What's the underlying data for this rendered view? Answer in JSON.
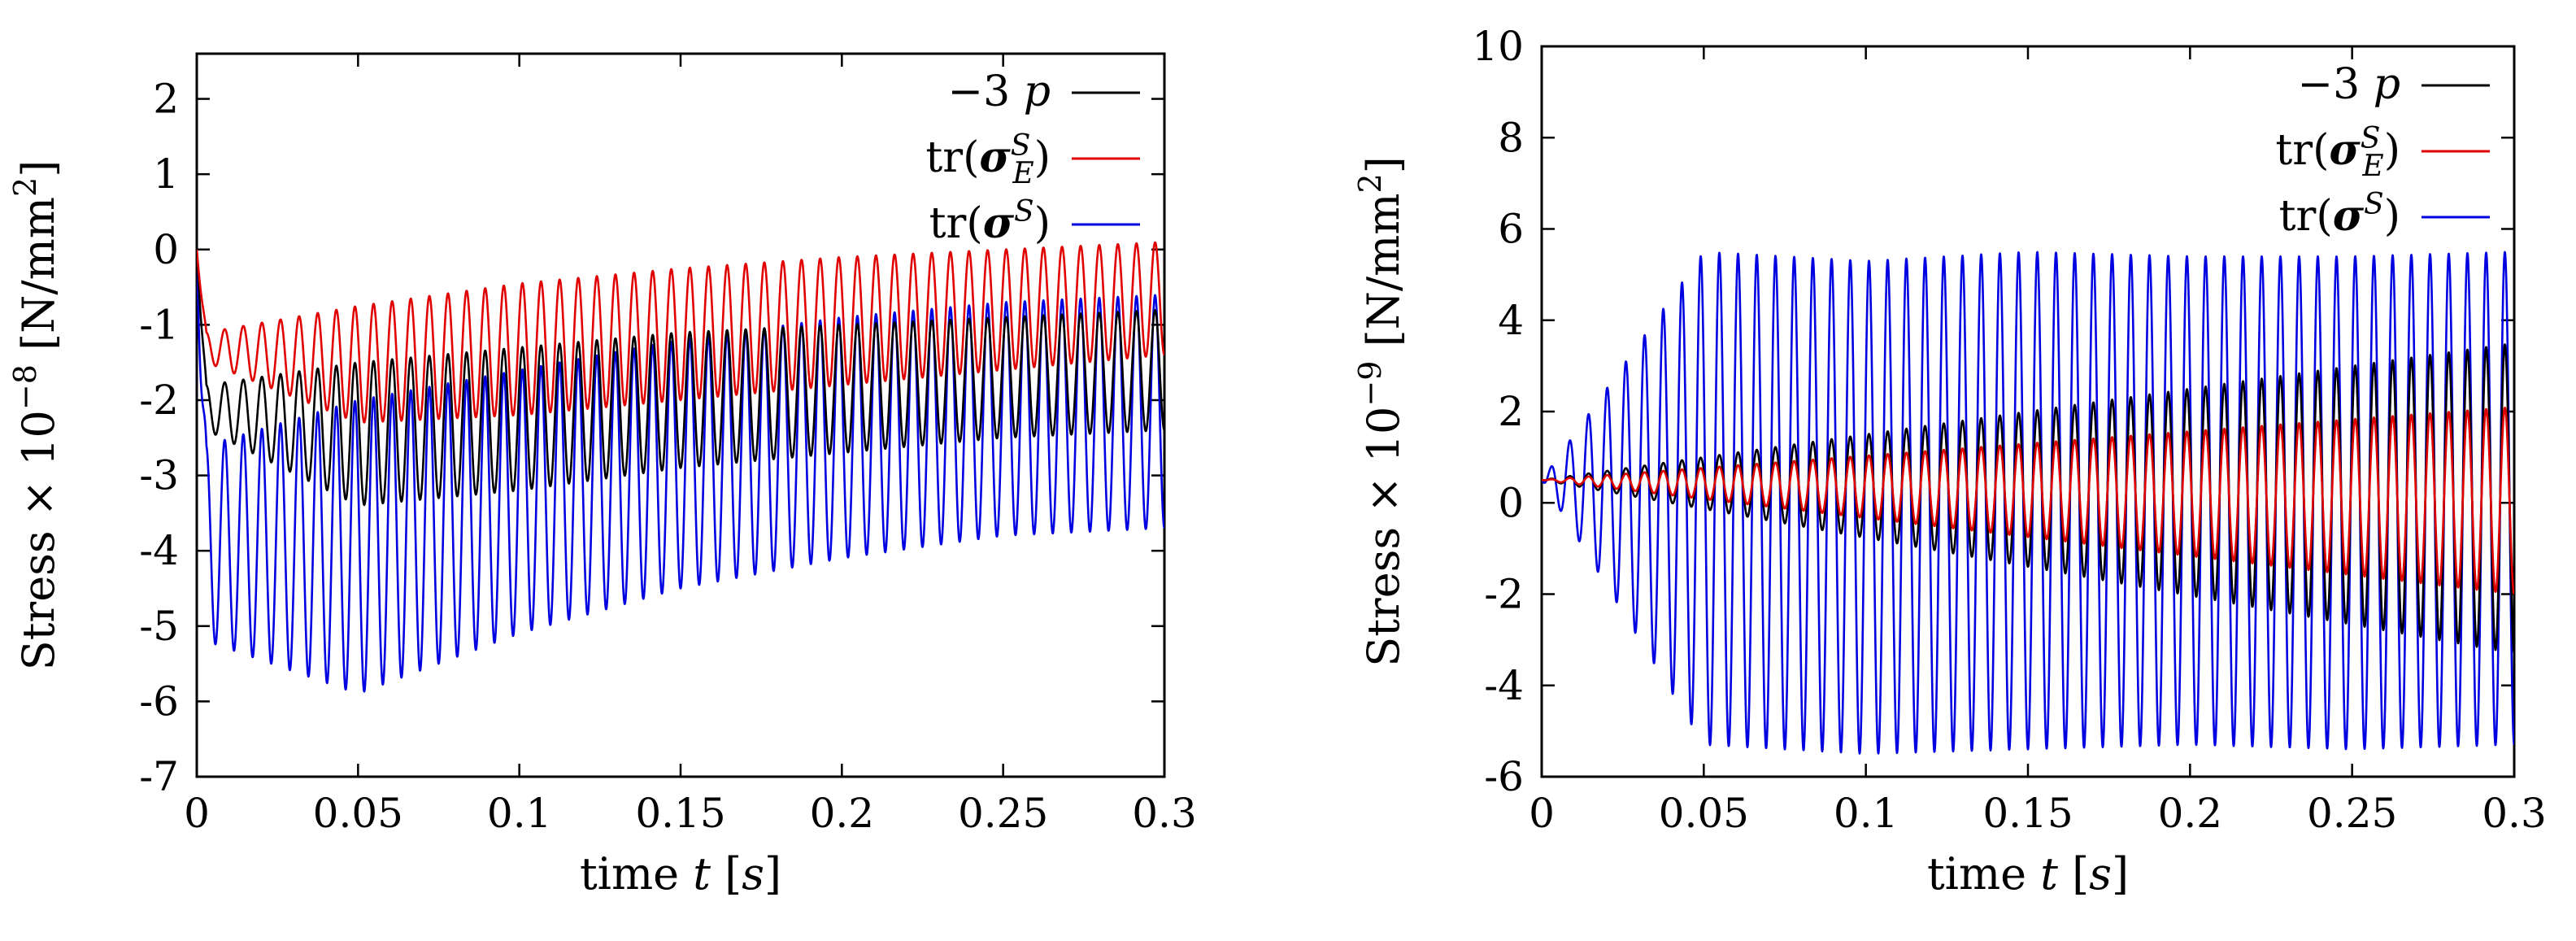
{
  "chart_data": [
    {
      "type": "line",
      "xlabel": "time t [s]",
      "ylabel": "Stress × 10⁻⁸ [N/mm²]",
      "xlim": [
        0,
        0.3
      ],
      "ylim": [
        -7,
        2.6
      ],
      "xticks": [
        "0",
        "0.05",
        "0.1",
        "0.15",
        "0.2",
        "0.25",
        "0.3"
      ],
      "yticks": [
        "2",
        "1",
        "0",
        "-1",
        "-2",
        "-3",
        "-4",
        "-5",
        "-6",
        "-7"
      ],
      "legend_position": "top-right",
      "grid": false,
      "oscillation_periods": 52,
      "series": [
        {
          "name": "−3 p",
          "color": "#000000",
          "x": [
            0,
            0.003,
            0.05,
            0.1,
            0.15,
            0.2,
            0.25,
            0.3
          ],
          "upper": [
            0,
            -1.8,
            -1.5,
            -1.3,
            -1.1,
            -1.0,
            -0.9,
            -0.8
          ],
          "lower": [
            0,
            -2.4,
            -3.4,
            -3.2,
            -2.9,
            -2.7,
            -2.5,
            -2.4
          ]
        },
        {
          "name": "tr(σ_E^S)",
          "color": "#e00000",
          "x": [
            0,
            0.003,
            0.05,
            0.1,
            0.15,
            0.2,
            0.25,
            0.3
          ],
          "upper": [
            0,
            -1.1,
            -0.75,
            -0.45,
            -0.25,
            -0.1,
            0.0,
            0.1
          ],
          "lower": [
            0,
            -1.5,
            -2.3,
            -2.2,
            -2.0,
            -1.8,
            -1.6,
            -1.4
          ]
        },
        {
          "name": "tr(σ^S)",
          "color": "#0000e0",
          "x": [
            0,
            0.003,
            0.05,
            0.1,
            0.15,
            0.2,
            0.25,
            0.3
          ],
          "upper": [
            0,
            -2.6,
            -2.0,
            -1.6,
            -1.2,
            -0.9,
            -0.7,
            -0.6
          ],
          "lower": [
            0,
            -5.2,
            -5.9,
            -5.1,
            -4.5,
            -4.1,
            -3.8,
            -3.7
          ]
        }
      ]
    },
    {
      "type": "line",
      "xlabel": "time t [s]",
      "ylabel": "Stress × 10⁻⁹ [N/mm²]",
      "xlim": [
        0,
        0.3
      ],
      "ylim": [
        -6,
        10
      ],
      "xticks": [
        "0",
        "0.05",
        "0.1",
        "0.15",
        "0.2",
        "0.25",
        "0.3"
      ],
      "yticks": [
        "10",
        "8",
        "6",
        "4",
        "2",
        "0",
        "-2",
        "-4",
        "-6"
      ],
      "legend_position": "top-right",
      "grid": false,
      "oscillation_periods": 52,
      "series": [
        {
          "name": "−3 p",
          "color": "#000000",
          "x": [
            0,
            0.3
          ],
          "upper": [
            0.5,
            3.5
          ],
          "lower": [
            0.5,
            -3.3
          ]
        },
        {
          "name": "tr(σ_E^S)",
          "color": "#e00000",
          "x": [
            0,
            0.3
          ],
          "upper": [
            0.5,
            2.1
          ],
          "lower": [
            0.5,
            -2.0
          ]
        },
        {
          "name": "tr(σ^S)",
          "color": "#0000e0",
          "x": [
            0,
            0.05,
            0.1,
            0.15,
            0.2,
            0.25,
            0.3
          ],
          "upper": [
            0.5,
            5.5,
            5.3,
            5.5,
            5.4,
            5.4,
            5.5
          ],
          "lower": [
            0.5,
            -5.3,
            -5.5,
            -5.4,
            -5.3,
            -5.4,
            -5.3
          ]
        }
      ]
    }
  ]
}
